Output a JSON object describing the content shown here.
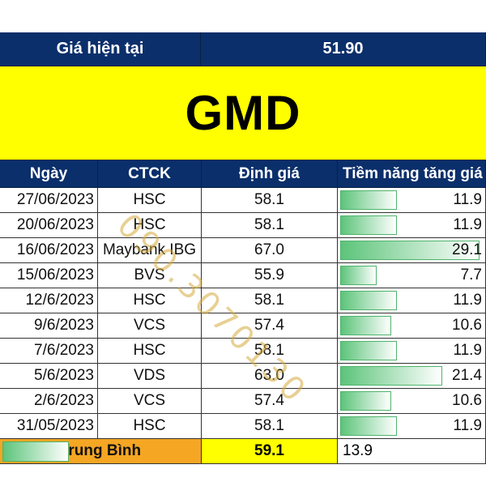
{
  "header": {
    "label": "Giá hiện tại",
    "current_price": "51.90"
  },
  "ticker": "GMD",
  "columns": {
    "date": "Ngày",
    "broker": "CTCK",
    "valuation": "Định giá",
    "potential": "Tiềm năng tăng giá"
  },
  "rows": [
    {
      "date": "27/06/2023",
      "broker": "HSC",
      "valuation": "58.1",
      "potential": "11.9",
      "potential_value": 11.9
    },
    {
      "date": "20/06/2023",
      "broker": "HSC",
      "valuation": "58.1",
      "potential": "11.9",
      "potential_value": 11.9
    },
    {
      "date": "16/06/2023",
      "broker": "Maybank IBG",
      "valuation": "67.0",
      "potential": "29.1",
      "potential_value": 29.1
    },
    {
      "date": "15/06/2023",
      "broker": "BVS",
      "valuation": "55.9",
      "potential": "7.7",
      "potential_value": 7.7
    },
    {
      "date": "12/6/2023",
      "broker": "HSC",
      "valuation": "58.1",
      "potential": "11.9",
      "potential_value": 11.9
    },
    {
      "date": "9/6/2023",
      "broker": "VCS",
      "valuation": "57.4",
      "potential": "10.6",
      "potential_value": 10.6
    },
    {
      "date": "7/6/2023",
      "broker": "HSC",
      "valuation": "58.1",
      "potential": "11.9",
      "potential_value": 11.9
    },
    {
      "date": "5/6/2023",
      "broker": "VDS",
      "valuation": "63.0",
      "potential": "21.4",
      "potential_value": 21.4
    },
    {
      "date": "2/6/2023",
      "broker": "VCS",
      "valuation": "57.4",
      "potential": "10.6",
      "potential_value": 10.6
    },
    {
      "date": "31/05/2023",
      "broker": "HSC",
      "valuation": "58.1",
      "potential": "11.9",
      "potential_value": 11.9
    }
  ],
  "average": {
    "label": "Trung Bình",
    "valuation": "59.1",
    "potential": "13.9",
    "potential_value": 13.9
  },
  "watermark": "090.3070130",
  "colors": {
    "header_bg": "#0b2f6b",
    "banner_bg": "#ffff00",
    "average_label_bg": "#f5a623",
    "bar_green": "#5cc47a"
  }
}
